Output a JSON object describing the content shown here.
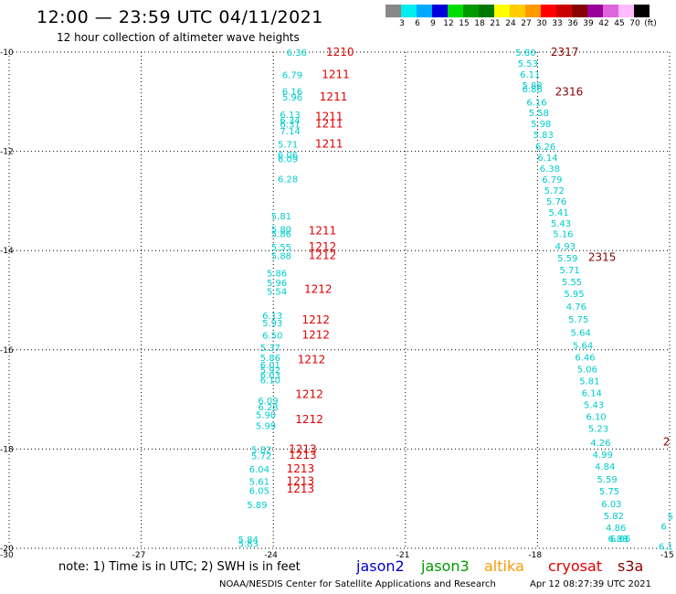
{
  "title": "12:00 — 23:59 UTC 04/11/2021",
  "subtitle": "12 hour collection of altimeter wave heights",
  "colorbar": {
    "labels": [
      "3",
      "6",
      "9",
      "12",
      "15",
      "18",
      "21",
      "24",
      "27",
      "30",
      "33",
      "36",
      "39",
      "42",
      "45",
      "70",
      "(ft)"
    ],
    "colors": [
      "#888888",
      "#00eeee",
      "#00aaff",
      "#0000dd",
      "#00dd00",
      "#009900",
      "#007700",
      "#ffff00",
      "#ffcc00",
      "#ff9900",
      "#ff0000",
      "#cc0000",
      "#880000",
      "#990099",
      "#dd66dd",
      "#ffbbff",
      "#000000"
    ]
  },
  "axes": {
    "lat_ticks": [
      "-10",
      "-12",
      "-14",
      "-16",
      "-18",
      "-20"
    ],
    "lon_ticks": [
      "-30",
      "-27",
      "-24",
      "-21",
      "-18",
      "-15"
    ]
  },
  "note": "note: 1) Time is in UTC; 2) SWH is in feet",
  "satellites": [
    {
      "name": "jason2",
      "color": "#0000cc"
    },
    {
      "name": "jason3",
      "color": "#009900"
    },
    {
      "name": "altika",
      "color": "#ff9900"
    },
    {
      "name": "cryosat",
      "color": "#dd0000"
    },
    {
      "name": "s3a",
      "color": "#880000"
    }
  ],
  "credit": "NOAA/NESDIS Center for Satellite Applications and Research",
  "timestamp": "Apr 12 08:27:39 UTC 2021",
  "chart_data": {
    "type": "scatter",
    "title": "12:00 — 23:59 UTC 04/11/2021",
    "subtitle": "12 hour collection of altimeter wave heights",
    "xlim": [
      -30,
      -15
    ],
    "ylim": [
      -20,
      -10
    ],
    "xticks": [
      -30,
      -27,
      -24,
      -21,
      -18,
      -15
    ],
    "yticks": [
      -10,
      -12,
      -14,
      -16,
      -18,
      -20
    ],
    "grid": true,
    "swh_color": "#00cccc",
    "series": [
      {
        "name": "cryosat",
        "color": "#dd0000",
        "swh": [
          {
            "lon": -23.7,
            "lat": -10.0,
            "v": "6.36"
          },
          {
            "lon": -23.8,
            "lat": -10.45,
            "v": "6.79"
          },
          {
            "lon": -23.8,
            "lat": -10.78,
            "v": "6.16"
          },
          {
            "lon": -23.8,
            "lat": -10.9,
            "v": "5.96"
          },
          {
            "lon": -23.85,
            "lat": -11.25,
            "v": "6.13"
          },
          {
            "lon": -23.85,
            "lat": -11.36,
            "v": "6.34"
          },
          {
            "lon": -23.85,
            "lat": -11.45,
            "v": "6.31"
          },
          {
            "lon": -23.85,
            "lat": -11.58,
            "v": "7.14"
          },
          {
            "lon": -23.9,
            "lat": -11.85,
            "v": "5.71"
          },
          {
            "lon": -23.9,
            "lat": -12.06,
            "v": "6.06"
          },
          {
            "lon": -23.9,
            "lat": -12.15,
            "v": "6.09"
          },
          {
            "lon": -23.9,
            "lat": -12.55,
            "v": "6.28"
          },
          {
            "lon": -24.05,
            "lat": -13.3,
            "v": "5.81"
          },
          {
            "lon": -24.05,
            "lat": -13.56,
            "v": "5.80"
          },
          {
            "lon": -24.05,
            "lat": -13.66,
            "v": "5.86"
          },
          {
            "lon": -24.05,
            "lat": -13.92,
            "v": "5.55"
          },
          {
            "lon": -24.05,
            "lat": -14.1,
            "v": "5.88"
          },
          {
            "lon": -24.15,
            "lat": -14.45,
            "v": "5.86"
          },
          {
            "lon": -24.15,
            "lat": -14.64,
            "v": "5.96"
          },
          {
            "lon": -24.15,
            "lat": -14.82,
            "v": "5.54"
          },
          {
            "lon": -24.25,
            "lat": -15.3,
            "v": "6.13"
          },
          {
            "lon": -24.25,
            "lat": -15.45,
            "v": "5.93"
          },
          {
            "lon": -24.25,
            "lat": -15.7,
            "v": "6.50"
          },
          {
            "lon": -24.3,
            "lat": -15.95,
            "v": "5.37"
          },
          {
            "lon": -24.3,
            "lat": -16.15,
            "v": "5.86"
          },
          {
            "lon": -24.3,
            "lat": -16.3,
            "v": "6.01"
          },
          {
            "lon": -24.3,
            "lat": -16.4,
            "v": "5.92"
          },
          {
            "lon": -24.3,
            "lat": -16.5,
            "v": "6.03"
          },
          {
            "lon": -24.3,
            "lat": -16.6,
            "v": "6.10"
          },
          {
            "lon": -24.35,
            "lat": -17.02,
            "v": "6.09"
          },
          {
            "lon": -24.35,
            "lat": -17.15,
            "v": "6.28"
          },
          {
            "lon": -24.4,
            "lat": -17.3,
            "v": "5.90"
          },
          {
            "lon": -24.4,
            "lat": -17.52,
            "v": "5.99"
          },
          {
            "lon": -24.5,
            "lat": -18.0,
            "v": "5.82"
          },
          {
            "lon": -24.5,
            "lat": -18.13,
            "v": "5.72"
          },
          {
            "lon": -24.55,
            "lat": -18.4,
            "v": "6.04"
          },
          {
            "lon": -24.55,
            "lat": -18.65,
            "v": "5.61"
          },
          {
            "lon": -24.55,
            "lat": -18.83,
            "v": "6.05"
          },
          {
            "lon": -24.6,
            "lat": -19.12,
            "v": "5.89"
          },
          {
            "lon": -24.8,
            "lat": -19.82,
            "v": "5.84"
          },
          {
            "lon": -24.8,
            "lat": -19.9,
            "v": "5.83"
          }
        ],
        "time_labels": [
          {
            "lon": -22.8,
            "lat": -10.0,
            "v": "1210"
          },
          {
            "lon": -22.9,
            "lat": -10.45,
            "v": "1211"
          },
          {
            "lon": -22.95,
            "lat": -10.9,
            "v": "1211"
          },
          {
            "lon": -23.05,
            "lat": -11.3,
            "v": "1211"
          },
          {
            "lon": -23.05,
            "lat": -11.45,
            "v": "1211"
          },
          {
            "lon": -23.05,
            "lat": -11.85,
            "v": "1211"
          },
          {
            "lon": -23.2,
            "lat": -13.6,
            "v": "1211"
          },
          {
            "lon": -23.2,
            "lat": -13.92,
            "v": "1212"
          },
          {
            "lon": -23.2,
            "lat": -14.1,
            "v": "1212"
          },
          {
            "lon": -23.3,
            "lat": -14.78,
            "v": "1212"
          },
          {
            "lon": -23.35,
            "lat": -15.4,
            "v": "1212"
          },
          {
            "lon": -23.35,
            "lat": -15.7,
            "v": "1212"
          },
          {
            "lon": -23.45,
            "lat": -16.2,
            "v": "1212"
          },
          {
            "lon": -23.5,
            "lat": -16.9,
            "v": "1212"
          },
          {
            "lon": -23.5,
            "lat": -17.4,
            "v": "1212"
          },
          {
            "lon": -23.65,
            "lat": -18.0,
            "v": "1213"
          },
          {
            "lon": -23.65,
            "lat": -18.12,
            "v": "1213"
          },
          {
            "lon": -23.7,
            "lat": -18.4,
            "v": "1213"
          },
          {
            "lon": -23.7,
            "lat": -18.65,
            "v": "1213"
          },
          {
            "lon": -23.7,
            "lat": -18.8,
            "v": "1213"
          }
        ]
      },
      {
        "name": "s3a",
        "color": "#880000",
        "swh": [
          {
            "lon": -18.5,
            "lat": -10.0,
            "v": "5.80"
          },
          {
            "lon": -18.45,
            "lat": -10.22,
            "v": "5.53"
          },
          {
            "lon": -18.4,
            "lat": -10.44,
            "v": "6.11"
          },
          {
            "lon": -18.35,
            "lat": -10.66,
            "v": "5.88"
          },
          {
            "lon": -18.35,
            "lat": -10.74,
            "v": "6.86"
          },
          {
            "lon": -18.25,
            "lat": -11.0,
            "v": "6.16"
          },
          {
            "lon": -18.2,
            "lat": -11.22,
            "v": "5.58"
          },
          {
            "lon": -18.15,
            "lat": -11.44,
            "v": "5.98"
          },
          {
            "lon": -18.1,
            "lat": -11.66,
            "v": "5.83"
          },
          {
            "lon": -18.05,
            "lat": -11.9,
            "v": "6.26"
          },
          {
            "lon": -18.0,
            "lat": -12.12,
            "v": "6.14"
          },
          {
            "lon": -17.95,
            "lat": -12.34,
            "v": "6.38"
          },
          {
            "lon": -17.9,
            "lat": -12.56,
            "v": "6.79"
          },
          {
            "lon": -17.85,
            "lat": -12.78,
            "v": "5.72"
          },
          {
            "lon": -17.8,
            "lat": -13.0,
            "v": "5.76"
          },
          {
            "lon": -17.75,
            "lat": -13.22,
            "v": "5.41"
          },
          {
            "lon": -17.7,
            "lat": -13.44,
            "v": "5.43"
          },
          {
            "lon": -17.65,
            "lat": -13.66,
            "v": "5.16"
          },
          {
            "lon": -17.6,
            "lat": -13.9,
            "v": "4.93"
          },
          {
            "lon": -17.55,
            "lat": -14.14,
            "v": "5.59"
          },
          {
            "lon": -17.5,
            "lat": -14.38,
            "v": "5.71"
          },
          {
            "lon": -17.45,
            "lat": -14.62,
            "v": "5.55"
          },
          {
            "lon": -17.4,
            "lat": -14.86,
            "v": "5.95"
          },
          {
            "lon": -17.35,
            "lat": -15.12,
            "v": "4.76"
          },
          {
            "lon": -17.3,
            "lat": -15.38,
            "v": "5.75"
          },
          {
            "lon": -17.25,
            "lat": -15.64,
            "v": "5.64"
          },
          {
            "lon": -17.2,
            "lat": -15.9,
            "v": "5.64"
          },
          {
            "lon": -17.15,
            "lat": -16.14,
            "v": "6.46"
          },
          {
            "lon": -17.1,
            "lat": -16.38,
            "v": "5.06"
          },
          {
            "lon": -17.05,
            "lat": -16.62,
            "v": "5.81"
          },
          {
            "lon": -17.0,
            "lat": -16.86,
            "v": "6.14"
          },
          {
            "lon": -16.95,
            "lat": -17.1,
            "v": "5.43"
          },
          {
            "lon": -16.9,
            "lat": -17.34,
            "v": "6.10"
          },
          {
            "lon": -16.85,
            "lat": -17.58,
            "v": "5.23"
          },
          {
            "lon": -16.8,
            "lat": -17.86,
            "v": "4.26"
          },
          {
            "lon": -16.75,
            "lat": -18.1,
            "v": "4.99"
          },
          {
            "lon": -16.7,
            "lat": -18.34,
            "v": "4.84"
          },
          {
            "lon": -16.65,
            "lat": -18.6,
            "v": "5.59"
          },
          {
            "lon": -16.6,
            "lat": -18.84,
            "v": "5.75"
          },
          {
            "lon": -16.55,
            "lat": -19.1,
            "v": "6.03"
          },
          {
            "lon": -16.5,
            "lat": -19.34,
            "v": "5.82"
          },
          {
            "lon": -16.45,
            "lat": -19.58,
            "v": "4.86"
          },
          {
            "lon": -16.4,
            "lat": -19.8,
            "v": "6.88"
          },
          {
            "lon": -16.35,
            "lat": -19.8,
            "v": "6.66"
          },
          {
            "lon": -15.05,
            "lat": -19.35,
            "v": "5"
          },
          {
            "lon": -15.2,
            "lat": -19.55,
            "v": "6"
          },
          {
            "lon": -15.25,
            "lat": -19.95,
            "v": "6.1"
          }
        ],
        "time_labels": [
          {
            "lon": -17.7,
            "lat": -10.0,
            "v": "2317"
          },
          {
            "lon": -17.6,
            "lat": -10.8,
            "v": "2316"
          },
          {
            "lon": -16.85,
            "lat": -14.13,
            "v": "2315"
          },
          {
            "lon": -15.15,
            "lat": -17.85,
            "v": "2"
          }
        ]
      }
    ]
  }
}
